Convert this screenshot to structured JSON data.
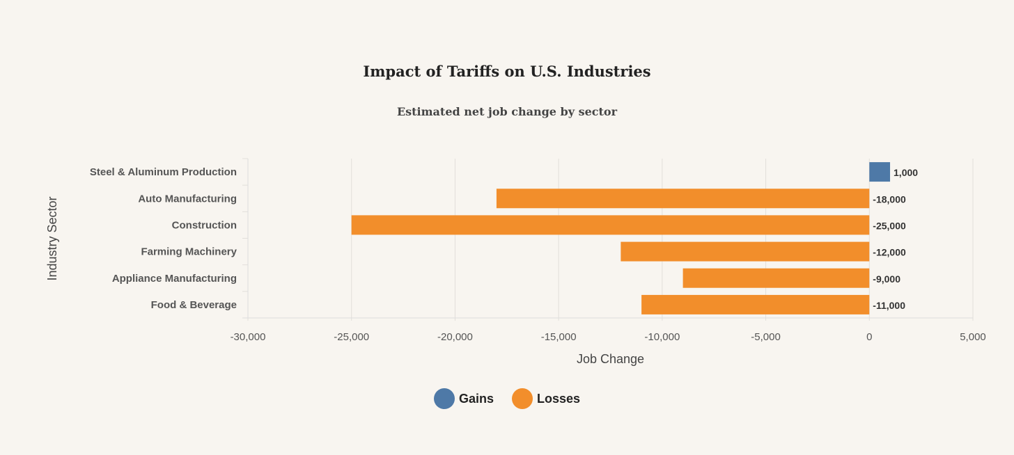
{
  "chart_data": {
    "type": "bar",
    "orientation": "horizontal",
    "title": "Impact of Tariffs on U.S. Industries",
    "subtitle": "Estimated net job change by sector",
    "xlabel": "Job Change",
    "ylabel": "Industry Sector",
    "categories": [
      "Steel & Aluminum Production",
      "Auto Manufacturing",
      "Construction",
      "Farming Machinery",
      "Appliance Manufacturing",
      "Food & Beverage"
    ],
    "values": [
      1000,
      -18000,
      -25000,
      -12000,
      -9000,
      -11000
    ],
    "data_labels": [
      "1,000",
      "-18,000",
      "-25,000",
      "-12,000",
      "-9,000",
      "-11,000"
    ],
    "xlim": [
      -30000,
      5000
    ],
    "xticks": [
      -30000,
      -25000,
      -20000,
      -15000,
      -10000,
      -5000,
      0,
      5000
    ],
    "xtick_labels": [
      "-30,000",
      "-25,000",
      "-20,000",
      "-15,000",
      "-10,000",
      "-5,000",
      "0",
      "5,000"
    ],
    "grid": true,
    "legend": {
      "placement": "bottom",
      "entries": [
        {
          "name": "Gains",
          "color": "#4e79a7"
        },
        {
          "name": "Losses",
          "color": "#f28e2b"
        }
      ]
    }
  }
}
